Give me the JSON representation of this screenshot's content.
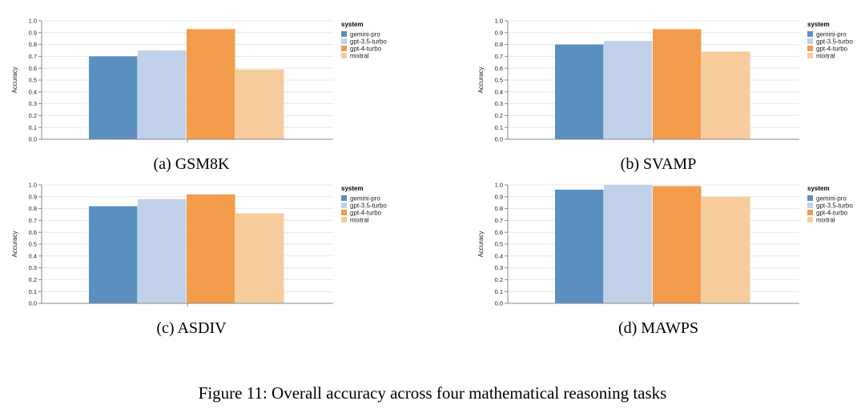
{
  "figure_caption": "Figure 11: Overall accuracy across four mathematical reasoning tasks",
  "colors": {
    "gemini-pro": "#5b8fc0",
    "gpt-3.5-turbo": "#c2d1ea",
    "gpt-4-turbo": "#f39c4c",
    "mixtral": "#f6cc9c"
  },
  "chart_data": [
    {
      "type": "bar",
      "caption": "(a) GSM8K",
      "ylabel": "Accuracy",
      "ylim": [
        0,
        1
      ],
      "yticks": [
        "0.0",
        "0.1",
        "0.2",
        "0.3",
        "0.4",
        "0.5",
        "0.6",
        "0.7",
        "0.8",
        "0.9",
        "1.0"
      ],
      "grid": true,
      "legend_title": "system",
      "legend_placement": "right",
      "categories": [
        "gemini-pro",
        "gpt-3.5-turbo",
        "gpt-4-turbo",
        "mixtral"
      ],
      "values": [
        0.7,
        0.75,
        0.93,
        0.59
      ]
    },
    {
      "type": "bar",
      "caption": "(b) SVAMP",
      "ylabel": "Accuracy",
      "ylim": [
        0,
        1
      ],
      "yticks": [
        "0.0",
        "0.1",
        "0.2",
        "0.3",
        "0.4",
        "0.5",
        "0.6",
        "0.7",
        "0.8",
        "0.9",
        "1.0"
      ],
      "grid": true,
      "legend_title": "system",
      "legend_placement": "right",
      "categories": [
        "gemini-pro",
        "gpt-3.5-turbo",
        "gpt-4-turbo",
        "mixtral"
      ],
      "values": [
        0.8,
        0.83,
        0.93,
        0.74
      ]
    },
    {
      "type": "bar",
      "caption": "(c) ASDIV",
      "ylabel": "Accuracy",
      "ylim": [
        0,
        1
      ],
      "yticks": [
        "0.0",
        "0.1",
        "0.2",
        "0.3",
        "0.4",
        "0.5",
        "0.6",
        "0.7",
        "0.8",
        "0.9",
        "1.0"
      ],
      "grid": true,
      "legend_title": "system",
      "legend_placement": "right",
      "categories": [
        "gemini-pro",
        "gpt-3.5-turbo",
        "gpt-4-turbo",
        "mixtral"
      ],
      "values": [
        0.82,
        0.88,
        0.92,
        0.76
      ]
    },
    {
      "type": "bar",
      "caption": "(d) MAWPS",
      "ylabel": "Accuracy",
      "ylim": [
        0,
        1
      ],
      "yticks": [
        "0.0",
        "0.1",
        "0.2",
        "0.3",
        "0.4",
        "0.5",
        "0.6",
        "0.7",
        "0.8",
        "0.9",
        "1.0"
      ],
      "grid": true,
      "legend_title": "system",
      "legend_placement": "right",
      "categories": [
        "gemini-pro",
        "gpt-3.5-turbo",
        "gpt-4-turbo",
        "mixtral"
      ],
      "values": [
        0.96,
        1.0,
        0.99,
        0.9
      ]
    }
  ]
}
